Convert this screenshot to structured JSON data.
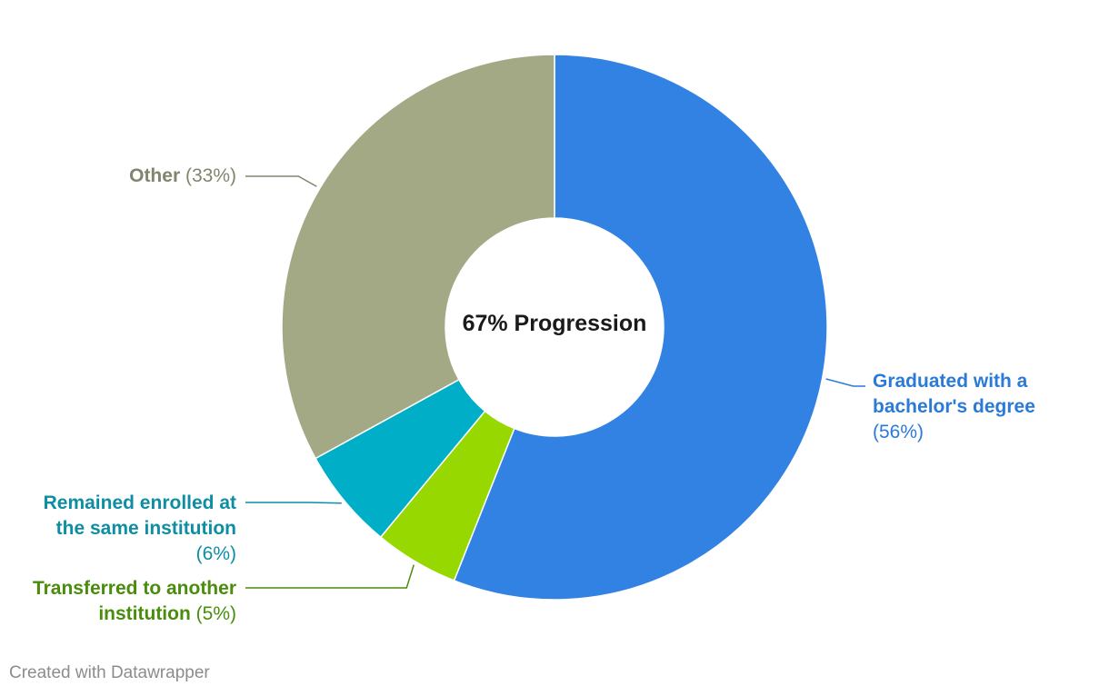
{
  "chart_data": {
    "type": "pie",
    "donut": true,
    "center_label": "67% Progression",
    "slices": [
      {
        "name": "Graduated with a bachelor's degree",
        "name_lines": [
          "Graduated with a",
          "bachelor's degree"
        ],
        "value": 56,
        "value_label": "(56%)",
        "color": "#3282e3",
        "text_color": "#2a7ad8"
      },
      {
        "name": "Transferred to another institution",
        "name_lines": [
          "Transferred to another",
          "institution"
        ],
        "value": 5,
        "value_label": "(5%)",
        "color": "#97d800",
        "text_color": "#4a8c0c"
      },
      {
        "name": "Remained enrolled at the same institution",
        "name_lines": [
          "Remained enrolled at",
          "the same institution"
        ],
        "value": 6,
        "value_label": "(6%)",
        "color": "#00aec8",
        "text_color": "#0d8ea3"
      },
      {
        "name": "Other",
        "name_lines": [
          "Other"
        ],
        "value": 33,
        "value_label": "(33%)",
        "color": "#a3a985",
        "text_color": "#80856b"
      }
    ]
  },
  "footer": {
    "credit": "Created with Datawrapper"
  }
}
